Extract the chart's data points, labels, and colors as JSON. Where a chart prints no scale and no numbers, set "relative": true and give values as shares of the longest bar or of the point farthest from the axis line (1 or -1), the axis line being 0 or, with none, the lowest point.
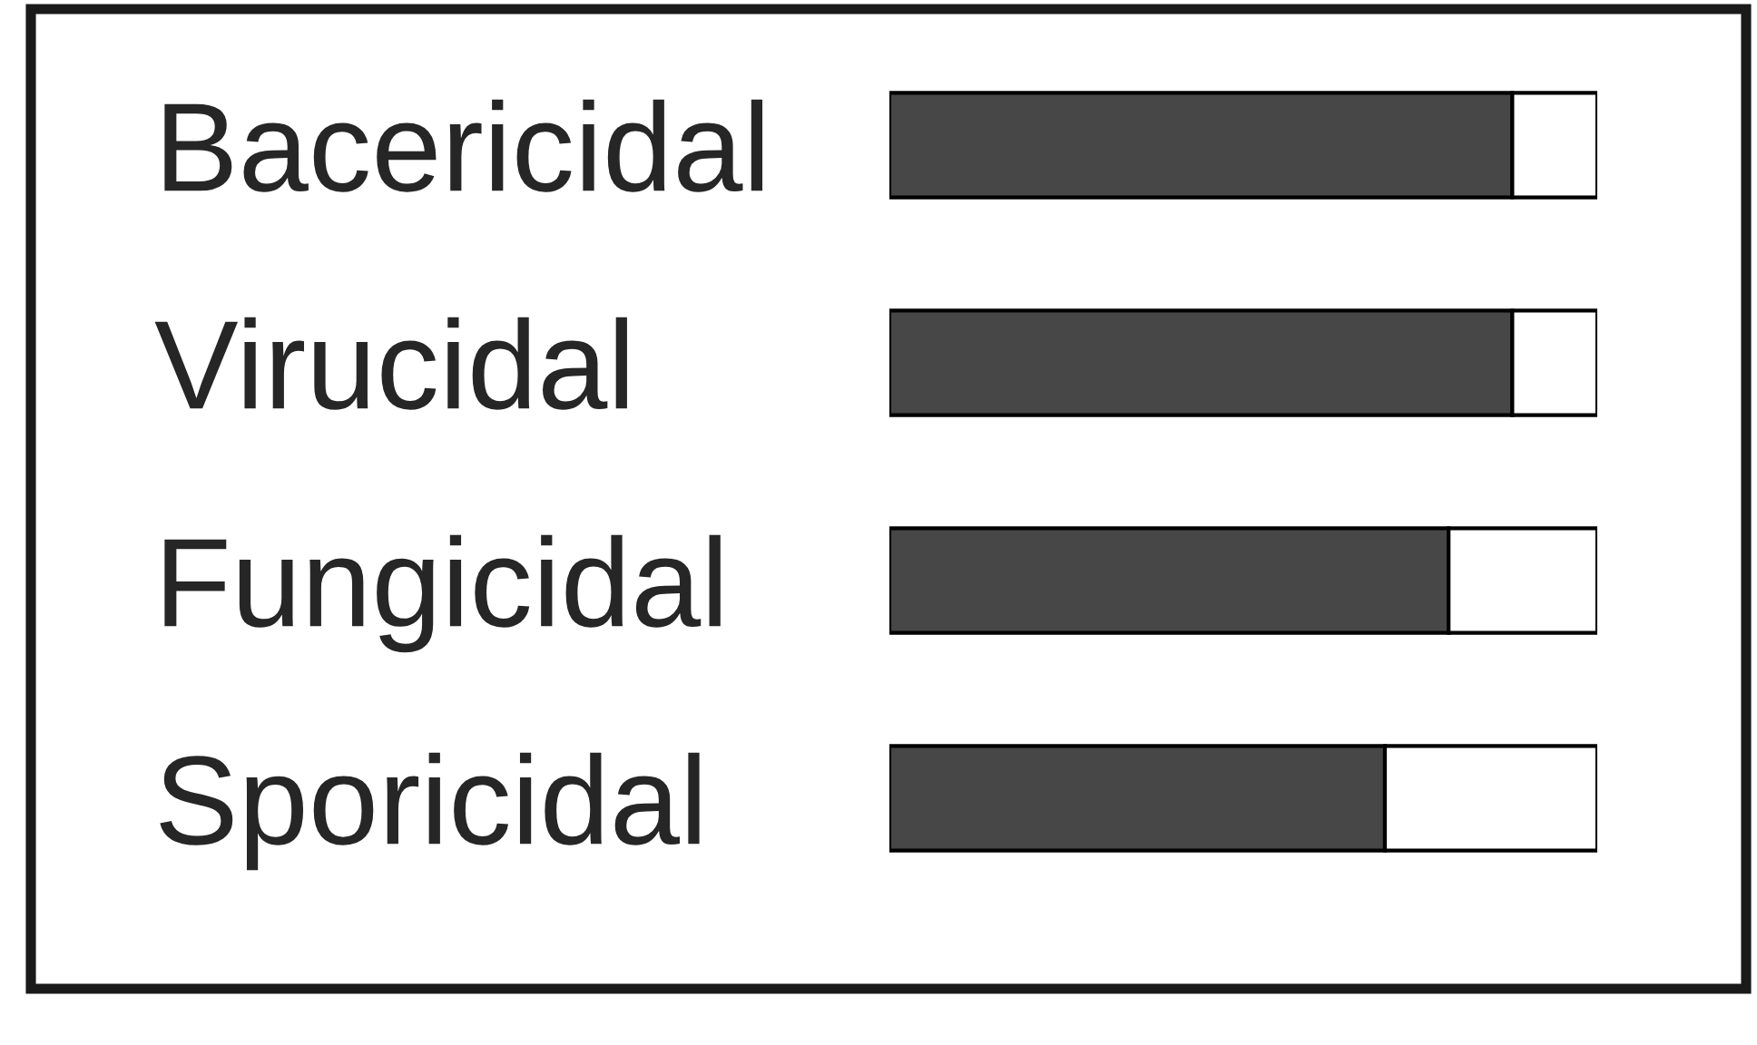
{
  "chart_data": {
    "type": "bar",
    "orientation": "horizontal",
    "stacked": true,
    "relative": true,
    "categories": [
      "Bacericidal",
      "Virucidal",
      "Fungicidal",
      "Sporicidal"
    ],
    "series": [
      {
        "color": "#474747",
        "values": [
          0.88,
          0.88,
          0.79,
          0.7
        ]
      },
      {
        "color": "#ffffff",
        "values": [
          0.12,
          0.12,
          0.21,
          0.3
        ]
      }
    ],
    "legend": false
  }
}
